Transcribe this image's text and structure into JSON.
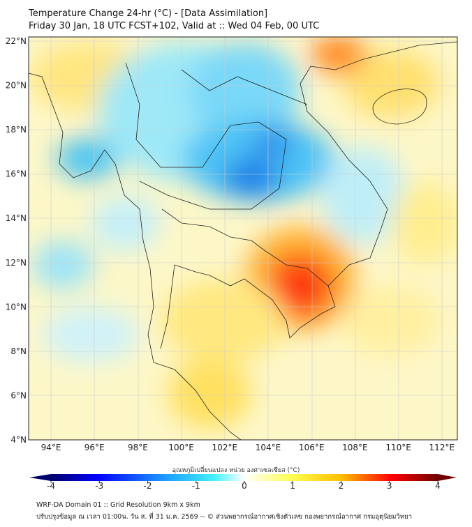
{
  "header": {
    "title": "Temperature Change 24-hr (°C) - [Data Assimilation]",
    "subtitle": "Friday 30 Jan, 18 UTC FCST+102, Valid at :: Wed 04 Feb, 00 UTC"
  },
  "map": {
    "lat_labels": [
      "4°N",
      "6°N",
      "8°N",
      "10°N",
      "12°N",
      "14°N",
      "16°N",
      "18°N",
      "20°N",
      "22°N"
    ],
    "lon_labels": [
      "94°E",
      "96°E",
      "98°E",
      "100°E",
      "102°E",
      "104°E",
      "106°E",
      "108°E",
      "110°E",
      "112°E"
    ],
    "lat_range": [
      4,
      22.2
    ],
    "lon_range": [
      93,
      112.7
    ]
  },
  "colorbar": {
    "label": "อุณหภูมิเปลี่ยนแปลง หน่วย องศาเซลเซียส (°C)",
    "ticks": [
      "-4",
      "-3",
      "-2",
      "-1",
      "0",
      "1",
      "2",
      "3",
      "4"
    ],
    "range": [
      -4,
      4
    ],
    "colors": [
      "#00006e",
      "#0000ff",
      "#1e90ff",
      "#40e0f0",
      "#ffffff",
      "#ffff60",
      "#ffc000",
      "#ff0000",
      "#6e0000"
    ]
  },
  "footer": {
    "line1": "WRF-DA Domain 01 :: Grid Resolution 9km x 9km",
    "line2": "ปรับปรุงข้อมูล ณ เวลา 01:00น. วัน ส. ที่ 31 ม.ค. 2569 -- © ส่วนพยากรณ์อากาศเชิงตัวเลข กองพยากรณ์อากาศ กรมอุตุนิยมวิทยา"
  }
}
